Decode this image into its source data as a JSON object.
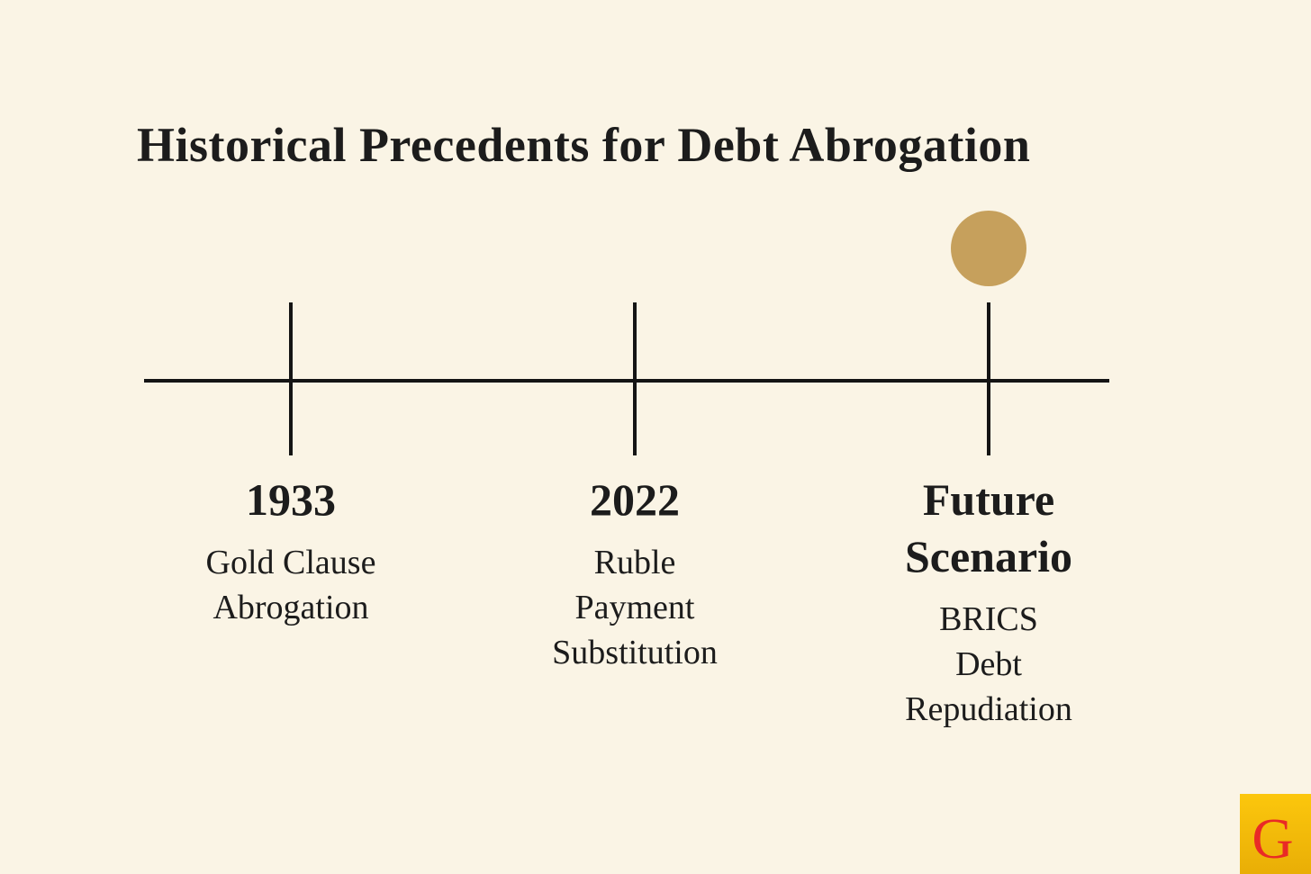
{
  "title": "Historical Precedents for Debt Abrogation",
  "colors": {
    "background": "#faf4e5",
    "text": "#1c1c1c",
    "line": "#141414",
    "marker_gold": "#c6a05c",
    "logo_yellow_top": "#fcc70d",
    "logo_yellow_bottom": "#e9ae06",
    "logo_red": "#e92a26"
  },
  "timeline": {
    "events": [
      {
        "year_lines": [
          "1933"
        ],
        "label_lines": [
          "Gold Clause",
          "Abrogation"
        ],
        "highlighted": false
      },
      {
        "year_lines": [
          "2022"
        ],
        "label_lines": [
          "Ruble",
          "Payment",
          "Substitution"
        ],
        "highlighted": false
      },
      {
        "year_lines": [
          "Future",
          "Scenario"
        ],
        "label_lines": [
          "BRICS",
          "Debt",
          "Repudiation"
        ],
        "highlighted": true,
        "marker_icon": "gold-circle"
      }
    ]
  },
  "logo": {
    "letter": "G"
  }
}
